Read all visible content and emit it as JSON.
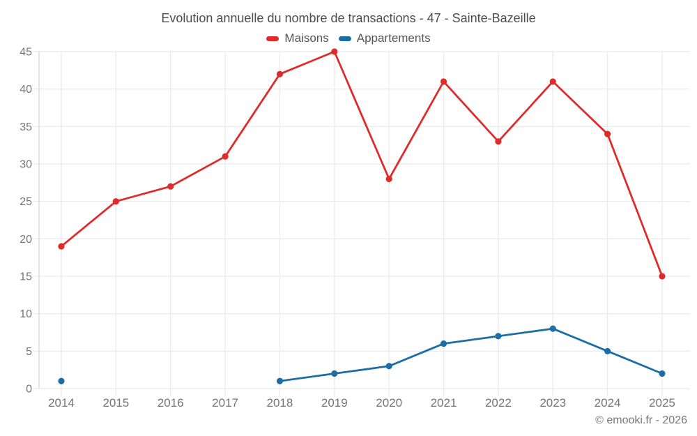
{
  "header": {
    "title": "Evolution annuelle du nombre de transactions - 47 - Sainte-Bazeille"
  },
  "legend": {
    "items": [
      {
        "label": "Maisons",
        "color": "#e02b2b"
      },
      {
        "label": "Appartements",
        "color": "#1c6ea4"
      }
    ]
  },
  "footer": {
    "copyright": "© emooki.fr - 2026"
  },
  "colors": {
    "maisons": "#e02b2b",
    "appartements": "#1c6ea4",
    "gridline": "#ebebeb",
    "axis_line": "#d6d6d6",
    "axis_label": "#757575",
    "title_text": "#4d4d4d"
  },
  "chart_data": {
    "type": "line",
    "title": "Evolution annuelle du nombre de transactions - 47 - Sainte-Bazeille",
    "x": [
      2014,
      2015,
      2016,
      2017,
      2018,
      2019,
      2020,
      2021,
      2022,
      2023,
      2024,
      2025
    ],
    "series": [
      {
        "name": "Maisons",
        "color": "#e02b2b",
        "values": [
          19,
          25,
          27,
          31,
          42,
          45,
          28,
          41,
          33,
          41,
          34,
          15
        ]
      },
      {
        "name": "Appartements",
        "color": "#1c6ea4",
        "values": [
          1,
          null,
          null,
          null,
          1,
          2,
          3,
          6,
          7,
          8,
          5,
          2
        ]
      }
    ],
    "xlabel": "",
    "ylabel": "",
    "ylim": [
      0,
      45
    ],
    "yticks": [
      0,
      5,
      10,
      15,
      20,
      25,
      30,
      35,
      40,
      45
    ],
    "grid": true,
    "legend_position": "top",
    "annotations": [
      "© emooki.fr - 2026"
    ]
  }
}
